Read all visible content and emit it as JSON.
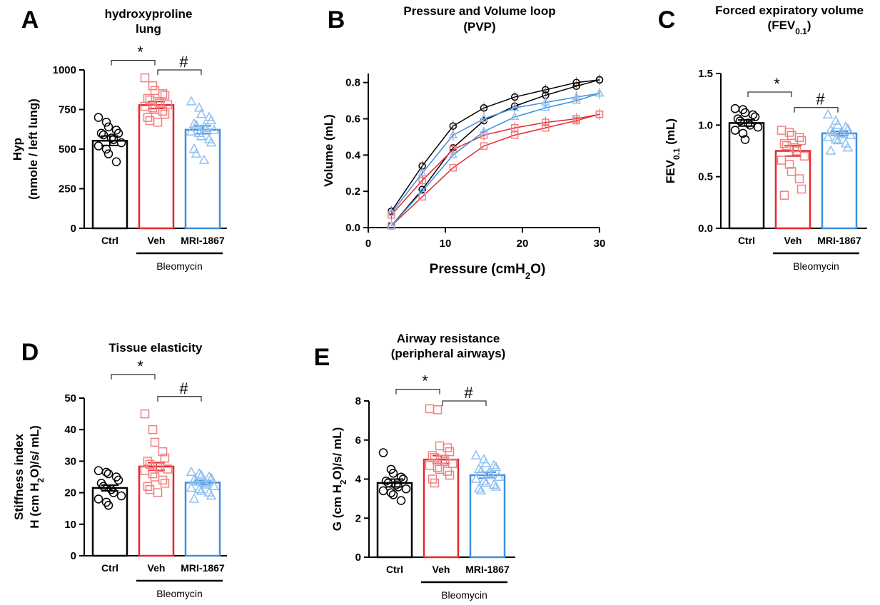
{
  "colors": {
    "ctrl": "#000000",
    "veh": "#e8262c",
    "mri": "#3d8fe0",
    "veh_light": "#f08080",
    "mri_light": "#8fc0f0"
  },
  "chart_data": [
    {
      "id": "A",
      "type": "bar",
      "letter": "A",
      "title": [
        "hydroxyproline",
        "lung"
      ],
      "ylabel": [
        "Hyp",
        "(nmole / left lung)"
      ],
      "ylim": [
        0,
        1000
      ],
      "yticks": [
        0,
        250,
        500,
        750,
        1000
      ],
      "categories": [
        "Ctrl",
        "Veh",
        "MRI-1867"
      ],
      "group_label": "Bleomycin",
      "series": [
        {
          "name": "Ctrl",
          "mean": 553,
          "sem": 30,
          "marker": "circle",
          "points": [
            700,
            670,
            640,
            620,
            600,
            600,
            590,
            570,
            560,
            540,
            520,
            500,
            470,
            420
          ]
        },
        {
          "name": "Veh",
          "mean": 778,
          "sem": 22,
          "marker": "square",
          "points": [
            950,
            900,
            870,
            850,
            840,
            820,
            810,
            800,
            790,
            780,
            770,
            760,
            750,
            740,
            720,
            700,
            680,
            670
          ]
        },
        {
          "name": "MRI-1867",
          "mean": 622,
          "sem": 25,
          "marker": "triangle",
          "points": [
            800,
            760,
            720,
            700,
            680,
            660,
            650,
            640,
            630,
            620,
            610,
            600,
            580,
            560,
            540,
            500,
            470,
            430
          ]
        }
      ],
      "sig": [
        {
          "from": 0,
          "to": 1,
          "y": 1060,
          "symbol": "*"
        },
        {
          "from": 1,
          "to": 2,
          "y": 1000,
          "symbol": "#"
        }
      ]
    },
    {
      "id": "B",
      "type": "line",
      "letter": "B",
      "title": [
        "Pressure and  Volume loop",
        "(PVP)"
      ],
      "ylabel": [
        "Volume (mL)"
      ],
      "xlabel": "Pressure (cmH2O)",
      "xlim": [
        0,
        30
      ],
      "ylim": [
        0,
        0.85
      ],
      "xticks": [
        0,
        10,
        20,
        30
      ],
      "yticks": [
        0.0,
        0.2,
        0.4,
        0.6,
        0.8
      ],
      "series": [
        {
          "name": "Ctrl",
          "marker": "circle",
          "x": [
            3,
            7,
            11,
            15,
            19,
            23,
            27,
            30
          ],
          "upper": [
            0.09,
            0.34,
            0.56,
            0.66,
            0.72,
            0.76,
            0.8,
            0.815
          ],
          "lower": [
            0.01,
            0.21,
            0.44,
            0.59,
            0.67,
            0.73,
            0.78,
            0.815
          ]
        },
        {
          "name": "Veh",
          "marker": "square",
          "x": [
            3,
            7,
            11,
            15,
            19,
            23,
            27,
            30
          ],
          "upper": [
            0.07,
            0.26,
            0.43,
            0.51,
            0.55,
            0.58,
            0.6,
            0.625
          ],
          "lower": [
            0.01,
            0.17,
            0.33,
            0.45,
            0.51,
            0.55,
            0.59,
            0.625
          ]
        },
        {
          "name": "MRI-1867",
          "marker": "triangle",
          "x": [
            3,
            7,
            11,
            15,
            19,
            23,
            27,
            30
          ],
          "upper": [
            0.08,
            0.3,
            0.51,
            0.6,
            0.66,
            0.69,
            0.72,
            0.74
          ],
          "lower": [
            0.01,
            0.2,
            0.4,
            0.53,
            0.61,
            0.66,
            0.7,
            0.74
          ]
        }
      ]
    },
    {
      "id": "C",
      "type": "bar",
      "letter": "C",
      "title": [
        "Forced expiratory volume",
        "(FEV0.1)"
      ],
      "ylabel": [
        "FEV0.1 (mL)"
      ],
      "ylim": [
        0,
        1.5
      ],
      "yticks": [
        0.0,
        0.5,
        1.0,
        1.5
      ],
      "categories": [
        "Ctrl",
        "Veh",
        "MRI-1867"
      ],
      "group_label": "Bleomycin",
      "series": [
        {
          "name": "Ctrl",
          "mean": 1.02,
          "sem": 0.03,
          "marker": "circle",
          "points": [
            1.16,
            1.15,
            1.12,
            1.1,
            1.08,
            1.06,
            1.04,
            1.02,
            1.0,
            0.98,
            0.95,
            0.92,
            0.86
          ]
        },
        {
          "name": "Veh",
          "mean": 0.75,
          "sem": 0.05,
          "marker": "square",
          "points": [
            0.95,
            0.93,
            0.9,
            0.88,
            0.85,
            0.82,
            0.8,
            0.78,
            0.75,
            0.7,
            0.66,
            0.62,
            0.55,
            0.48,
            0.38,
            0.32
          ]
        },
        {
          "name": "MRI-1867",
          "mean": 0.92,
          "sem": 0.02,
          "marker": "triangle",
          "points": [
            1.1,
            1.04,
            1.0,
            0.98,
            0.96,
            0.95,
            0.93,
            0.92,
            0.91,
            0.9,
            0.88,
            0.86,
            0.85,
            0.82,
            0.78,
            0.75
          ]
        }
      ],
      "sig": [
        {
          "from": 0,
          "to": 1,
          "y": 1.32,
          "symbol": "*"
        },
        {
          "from": 1,
          "to": 2,
          "y": 1.17,
          "symbol": "#"
        }
      ]
    },
    {
      "id": "D",
      "type": "bar",
      "letter": "D",
      "title": [
        "Tissue elasticity"
      ],
      "ylabel": [
        "Stiffness index",
        "H (cm H2O)/s/ mL)"
      ],
      "ylim": [
        0,
        50
      ],
      "yticks": [
        0,
        10,
        20,
        30,
        40,
        50
      ],
      "categories": [
        "Ctrl",
        "Veh",
        "MRI-1867"
      ],
      "group_label": "Bleomycin",
      "series": [
        {
          "name": "Ctrl",
          "mean": 21.5,
          "sem": 0.9,
          "marker": "circle",
          "points": [
            27,
            26.5,
            26,
            25,
            24,
            23,
            22,
            21,
            20,
            19,
            18,
            17,
            16
          ]
        },
        {
          "name": "Veh",
          "mean": 28.3,
          "sem": 1.2,
          "marker": "square",
          "points": [
            45,
            40,
            36,
            33,
            31,
            30,
            29,
            28.5,
            28,
            27.5,
            27,
            26,
            25,
            24,
            23,
            22,
            21,
            20
          ]
        },
        {
          "name": "MRI-1867",
          "mean": 23.2,
          "sem": 0.7,
          "marker": "triangle",
          "points": [
            26.5,
            26,
            25.5,
            25,
            24.5,
            24,
            23.5,
            23,
            22.5,
            22,
            21.5,
            21,
            20.5,
            20,
            19,
            18
          ]
        }
      ],
      "sig": [
        {
          "from": 0,
          "to": 1,
          "y": 57.5,
          "symbol": "*"
        },
        {
          "from": 1,
          "to": 2,
          "y": 50.5,
          "symbol": "#"
        }
      ]
    },
    {
      "id": "E",
      "type": "bar",
      "letter": "E",
      "title": [
        "Airway resistance",
        "(peripheral airways)"
      ],
      "ylabel": [
        "G (cm H2O)/s/ mL)"
      ],
      "ylim": [
        0,
        8
      ],
      "yticks": [
        0,
        2,
        4,
        6,
        8
      ],
      "categories": [
        "Ctrl",
        "Veh",
        "MRI-1867"
      ],
      "group_label": "Bleomycin",
      "series": [
        {
          "name": "Ctrl",
          "mean": 3.8,
          "sem": 0.2,
          "marker": "circle",
          "points": [
            5.35,
            4.5,
            4.3,
            4.1,
            4.0,
            3.9,
            3.8,
            3.7,
            3.6,
            3.5,
            3.4,
            3.3,
            3.2,
            2.9
          ]
        },
        {
          "name": "Veh",
          "mean": 5.0,
          "sem": 0.2,
          "marker": "square",
          "points": [
            7.6,
            7.55,
            5.7,
            5.6,
            5.4,
            5.2,
            5.1,
            5.0,
            4.9,
            4.8,
            4.7,
            4.6,
            4.5,
            4.4,
            4.2,
            4.0,
            3.8
          ]
        },
        {
          "name": "MRI-1867",
          "mean": 4.2,
          "sem": 0.15,
          "marker": "triangle",
          "points": [
            5.2,
            5.0,
            4.8,
            4.7,
            4.6,
            4.5,
            4.4,
            4.3,
            4.2,
            4.1,
            4.0,
            3.9,
            3.8,
            3.7,
            3.6,
            3.5,
            3.4
          ]
        }
      ],
      "sig": [
        {
          "from": 0,
          "to": 1,
          "y": 8.6,
          "symbol": "*"
        },
        {
          "from": 1,
          "to": 2,
          "y": 8.0,
          "symbol": "#"
        }
      ]
    }
  ]
}
